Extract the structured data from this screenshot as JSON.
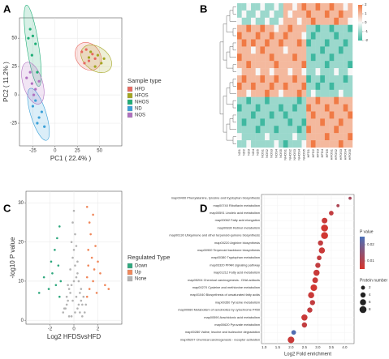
{
  "chart_data": [
    {
      "type": "scatter",
      "panel": "A",
      "xlabel": "PC1 ( 22.4% )",
      "ylabel": "PC2 ( 11.2% )",
      "legend_title": "Sample type",
      "ellipses": true,
      "grid": true,
      "xlim": [
        -40,
        75
      ],
      "ylim": [
        -45,
        68
      ],
      "xticks": [
        -25,
        0,
        25,
        50
      ],
      "yticks": [
        -25,
        0,
        25,
        50
      ],
      "series": [
        {
          "name": "HFD",
          "color": "#e8685f",
          "x": [
            30,
            35,
            38,
            42,
            45,
            33
          ],
          "y": [
            38,
            40,
            30,
            36,
            32,
            28
          ]
        },
        {
          "name": "HFOS",
          "color": "#a3a51f",
          "x": [
            40,
            48,
            52,
            45,
            38,
            55
          ],
          "y": [
            38,
            35,
            28,
            25,
            33,
            32
          ]
        },
        {
          "name": "NHOS",
          "color": "#1fae76",
          "x": [
            -28,
            -25,
            -22,
            -26,
            -20,
            -30
          ],
          "y": [
            58,
            52,
            45,
            35,
            20,
            50
          ]
        },
        {
          "name": "ND",
          "color": "#3aa0d8",
          "x": [
            -22,
            -18,
            -12,
            -25,
            -15,
            -20
          ],
          "y": [
            -5,
            -20,
            -28,
            -10,
            -15,
            -25
          ]
        },
        {
          "name": "NOS",
          "color": "#b070c0",
          "x": [
            -32,
            -26,
            -22,
            -28,
            -18,
            -24
          ],
          "y": [
            15,
            10,
            5,
            20,
            12,
            0
          ]
        }
      ]
    },
    {
      "type": "heatmap",
      "panel": "B",
      "low": "#3fb8a0",
      "mid": "#f7f7f7",
      "high": "#f07a45",
      "zlim": [
        -2,
        2
      ],
      "zticks": [
        -2,
        -1,
        0,
        1,
        2
      ],
      "categories": [
        "ND1",
        "ND2",
        "ND3",
        "ND4",
        "ND5",
        "NOS1",
        "NOS2",
        "NOS3",
        "NOS4",
        "NOS5",
        "NHOS1",
        "NHOS2",
        "NHOS3",
        "NHOS4",
        "NHOS5",
        "HFD1",
        "HFD2",
        "HFD3",
        "HFD4",
        "HFD5",
        "HFOS1",
        "HFOS2",
        "HFOS3",
        "HFOS4",
        "HFOS5"
      ],
      "values": [
        [
          -1,
          -1,
          0,
          -1,
          -1,
          0,
          -1,
          -1,
          0,
          -1,
          1,
          1,
          0,
          1,
          2,
          1,
          1,
          2,
          1,
          1,
          2,
          1,
          1,
          0,
          1
        ],
        [
          -1,
          0,
          -1,
          -1,
          0,
          -1,
          -1,
          0,
          -1,
          -1,
          1,
          0,
          1,
          1,
          1,
          2,
          1,
          1,
          1,
          2,
          1,
          1,
          2,
          1,
          1
        ],
        [
          0,
          -1,
          -1,
          0,
          -1,
          -1,
          0,
          -1,
          -1,
          0,
          1,
          1,
          1,
          0,
          1,
          1,
          2,
          1,
          1,
          1,
          1,
          2,
          1,
          1,
          0
        ],
        [
          1,
          1,
          2,
          1,
          1,
          2,
          1,
          1,
          0,
          1,
          1,
          2,
          1,
          1,
          1,
          -1,
          -1,
          -2,
          -1,
          -1,
          -2,
          -1,
          -1,
          -1,
          -2
        ],
        [
          2,
          1,
          1,
          1,
          2,
          1,
          1,
          2,
          1,
          1,
          2,
          1,
          1,
          1,
          0,
          -1,
          -2,
          -1,
          -1,
          -1,
          -1,
          -2,
          -1,
          -1,
          -1
        ],
        [
          1,
          2,
          1,
          2,
          1,
          1,
          2,
          1,
          1,
          2,
          1,
          1,
          1,
          2,
          1,
          -2,
          -1,
          -1,
          -1,
          -2,
          -1,
          -1,
          -1,
          -2,
          -1
        ],
        [
          1,
          1,
          1,
          0,
          1,
          2,
          1,
          1,
          1,
          1,
          0,
          1,
          1,
          1,
          1,
          -1,
          -1,
          -1,
          -2,
          -1,
          -1,
          -1,
          -2,
          -1,
          -1
        ],
        [
          2,
          1,
          1,
          1,
          1,
          1,
          1,
          2,
          1,
          1,
          1,
          1,
          2,
          1,
          1,
          -1,
          -2,
          -1,
          -1,
          -1,
          -2,
          -1,
          -1,
          -1,
          -1
        ],
        [
          1,
          1,
          2,
          1,
          1,
          1,
          1,
          1,
          2,
          1,
          1,
          1,
          1,
          1,
          2,
          -1,
          -1,
          -1,
          -1,
          -2,
          -1,
          -1,
          -1,
          -1,
          -2
        ],
        [
          0,
          1,
          1,
          1,
          0,
          1,
          1,
          0,
          1,
          1,
          1,
          0,
          1,
          1,
          0,
          -1,
          -1,
          0,
          -1,
          -1,
          -1,
          0,
          -1,
          -1,
          0
        ],
        [
          1,
          2,
          1,
          1,
          1,
          2,
          1,
          1,
          2,
          1,
          1,
          1,
          2,
          1,
          1,
          -2,
          -1,
          -1,
          -2,
          -1,
          -1,
          -1,
          -1,
          -2,
          -1
        ],
        [
          2,
          1,
          1,
          2,
          1,
          1,
          1,
          2,
          1,
          1,
          2,
          1,
          1,
          1,
          2,
          -1,
          -1,
          -2,
          -1,
          -1,
          -2,
          -1,
          -1,
          -1,
          -1
        ],
        [
          1,
          1,
          0,
          1,
          1,
          1,
          2,
          1,
          1,
          0,
          1,
          1,
          1,
          2,
          1,
          -1,
          0,
          -1,
          -1,
          -1,
          -1,
          -1,
          0,
          -1,
          -1
        ],
        [
          -1,
          -1,
          -2,
          -1,
          -1,
          -1,
          -2,
          -1,
          -1,
          -1,
          -1,
          -1,
          -1,
          -2,
          -1,
          1,
          1,
          2,
          1,
          1,
          1,
          2,
          1,
          1,
          1
        ],
        [
          -2,
          -1,
          -1,
          -1,
          -2,
          -1,
          -1,
          -1,
          -1,
          -2,
          -1,
          -1,
          -2,
          -1,
          -1,
          2,
          1,
          1,
          1,
          2,
          1,
          1,
          1,
          2,
          1
        ],
        [
          -1,
          -1,
          -1,
          -2,
          -1,
          -1,
          -1,
          -2,
          -1,
          -1,
          -2,
          -1,
          -1,
          -1,
          -1,
          1,
          2,
          1,
          1,
          1,
          2,
          1,
          1,
          1,
          2
        ],
        [
          -1,
          -2,
          -1,
          -1,
          -1,
          -2,
          -1,
          -1,
          -1,
          -1,
          -1,
          -2,
          -1,
          -1,
          -2,
          1,
          1,
          1,
          2,
          1,
          1,
          1,
          2,
          1,
          1
        ],
        [
          -1,
          -1,
          -1,
          -1,
          -2,
          -1,
          -1,
          -1,
          -2,
          -1,
          -1,
          -1,
          -1,
          -2,
          -1,
          2,
          1,
          1,
          1,
          1,
          1,
          2,
          1,
          1,
          1
        ],
        [
          0,
          -1,
          -1,
          -1,
          -1,
          -1,
          0,
          -1,
          -1,
          -1,
          -1,
          -1,
          0,
          -1,
          -1,
          1,
          1,
          1,
          1,
          2,
          1,
          1,
          1,
          1,
          2
        ],
        [
          -1,
          -1,
          0,
          -1,
          -1,
          -1,
          -1,
          -1,
          0,
          -1,
          -2,
          -1,
          -1,
          -1,
          0,
          1,
          2,
          1,
          1,
          1,
          1,
          1,
          2,
          1,
          1
        ]
      ]
    },
    {
      "type": "scatter",
      "panel": "C",
      "xlabel": "Log2 HFDSvsHFD",
      "ylabel": "-log10 P value",
      "legend_title": "Regulated Type",
      "ellipses": false,
      "grid": true,
      "xlim": [
        -4,
        4
      ],
      "ylim": [
        -1,
        33
      ],
      "xticks": [
        -2,
        0,
        2
      ],
      "yticks": [
        0,
        10,
        20,
        30
      ],
      "series": [
        {
          "name": "Down",
          "color": "#2fa87e",
          "x": [
            -1.2,
            -1.5,
            -1.8,
            -2.1,
            -1.3,
            -2.5,
            -1.6,
            -1.1,
            -2.9,
            -1.4,
            -1.9,
            -1.2
          ],
          "y": [
            6,
            9,
            12,
            8,
            14,
            11,
            18,
            10,
            7,
            21,
            15,
            24
          ]
        },
        {
          "name": "Up",
          "color": "#f0875a",
          "x": [
            1.1,
            1.3,
            1.6,
            1.9,
            2.2,
            1.2,
            1.5,
            2.6,
            1.8,
            1.1,
            1.4,
            2.0,
            1.3,
            1.7,
            2.9,
            1.2,
            1.6,
            1.1
          ],
          "y": [
            6,
            8,
            10,
            7,
            12,
            14,
            16,
            9,
            19,
            11,
            22,
            15,
            25,
            13,
            8,
            18,
            27,
            29
          ]
        },
        {
          "name": "None",
          "color": "#b3b3b3",
          "x": [
            -0.2,
            0.1,
            0.3,
            -0.4,
            0.5,
            -0.6,
            0.7,
            -0.8,
            0.9,
            -0.1,
            0.2,
            -0.3,
            0.4,
            -0.5,
            0.6,
            -0.7,
            0.8,
            0.0,
            -0.9,
            1.0,
            -0.2,
            0.3,
            -0.4,
            0.1,
            0.5,
            -0.6,
            0.2,
            -0.1,
            0.4,
            -0.3,
            0.6,
            -0.5,
            0.7,
            0.0,
            -0.2,
            0.3,
            0.1,
            -0.1,
            0.2,
            0.0
          ],
          "y": [
            1,
            2,
            3,
            1,
            2,
            4,
            1,
            3,
            2,
            5,
            6,
            7,
            4,
            5,
            8,
            3,
            6,
            10,
            2,
            4,
            9,
            12,
            8,
            14,
            7,
            6,
            11,
            16,
            10,
            13,
            5,
            9,
            4,
            18,
            20,
            15,
            22,
            25,
            19,
            28
          ]
        }
      ]
    },
    {
      "type": "bubble",
      "panel": "D",
      "xlabel": "Log2 Fold enrichment",
      "color_title": "P value",
      "size_title": "Protein number",
      "xlim": [
        0.9,
        4.35
      ],
      "xticks": [
        {
          "value": 1,
          "label": "1.0"
        },
        {
          "value": 1.5,
          "label": "1.5"
        },
        {
          "value": 2,
          "label": "2.0"
        },
        {
          "value": 2.5,
          "label": "2.5"
        },
        {
          "value": 3,
          "label": "3.0"
        },
        {
          "value": 3.5,
          "label": "3.5"
        },
        {
          "value": 4,
          "label": "4.0"
        }
      ],
      "plim": [
        0.005,
        0.025
      ],
      "pticks": [
        0.01,
        0.02
      ],
      "low_color": "#d7342b",
      "high_color": "#4a70b8",
      "size_ticks": [
        2,
        4,
        6,
        8
      ],
      "categories": [
        "map00400 Phenylalanine, tyrosine and tryptophan biosynthesis",
        "map00740 Riboflavin metabolism",
        "map00591 Linoleic acid metabolism",
        "map00062 Fatty acid elongation",
        "map00830 Retinol metabolism",
        "map00130 Ubiquinone and other terpenoid-quinone biosynthesis",
        "map00220 Arginine biosynthesis",
        "map00900 Terpenoid backbone biosynthesis",
        "map00380 Tryptophan metabolism",
        "map03320 PPAR signaling pathway",
        "map01212 Fatty acid metabolism",
        "map05204 Chemical carcinogenesis - DNA adducts",
        "map00270 Cysteine and methionine metabolism",
        "map01040 Biosynthesis of unsaturated fatty acids",
        "map00350 Tyrosine metabolism",
        "map00980 Metabolism of xenobiotics by cytochrome P450",
        "map00590 Arachidonic acid metabolism",
        "map00620 Pyruvate metabolism",
        "map00280 Valine, leucine and isoleucine degradation",
        "map05207 Chemical carcinogenesis - receptor activation"
      ],
      "values": [
        4.2,
        3.75,
        3.5,
        3.25,
        3.25,
        3.25,
        3.1,
        3.15,
        3.05,
        3.0,
        2.95,
        2.9,
        2.85,
        2.75,
        2.8,
        2.7,
        2.5,
        2.5,
        2.1,
        2.0
      ],
      "sizes": [
        1,
        1,
        3,
        5,
        8,
        8,
        4,
        6,
        3,
        4,
        6,
        5,
        7,
        6,
        4,
        4,
        6,
        4,
        3,
        7
      ],
      "pvalues": [
        0.012,
        0.011,
        0.008,
        0.007,
        0.006,
        0.006,
        0.008,
        0.007,
        0.008,
        0.008,
        0.007,
        0.007,
        0.006,
        0.007,
        0.008,
        0.008,
        0.007,
        0.008,
        0.024,
        0.007
      ]
    }
  ]
}
